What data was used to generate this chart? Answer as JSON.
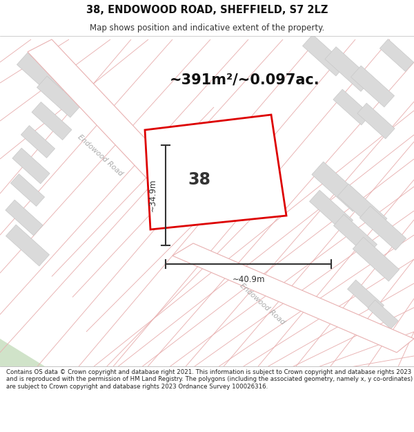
{
  "title": "38, ENDOWOOD ROAD, SHEFFIELD, S7 2LZ",
  "subtitle": "Map shows position and indicative extent of the property.",
  "area_text": "~391m²/~0.097ac.",
  "number_label": "38",
  "dim_vertical": "~34.9m",
  "dim_horizontal": "~40.9m",
  "road_label_upper": "Endowood Road",
  "road_label_lower": "Endowood Road",
  "footer_text": "Contains OS data © Crown copyright and database right 2021. This information is subject to Crown copyright and database rights 2023 and is reproduced with the permission of HM Land Registry. The polygons (including the associated geometry, namely x, y co-ordinates) are subject to Crown copyright and database rights 2023 Ordnance Survey 100026316.",
  "map_bg": "#f2f0ee",
  "road_fill": "#ffffff",
  "plot_stroke": "#dd0000",
  "plot_fill": "#ffffff",
  "road_line_color": "#e8b0b0",
  "building_fill": "#dadada",
  "building_stroke": "#c8c8c8",
  "footer_bg": "#ffffff",
  "header_bg": "#ffffff",
  "dim_color": "#333333",
  "road_label_color": "#aaaaaa",
  "area_text_color": "#111111",
  "number_color": "#333333"
}
